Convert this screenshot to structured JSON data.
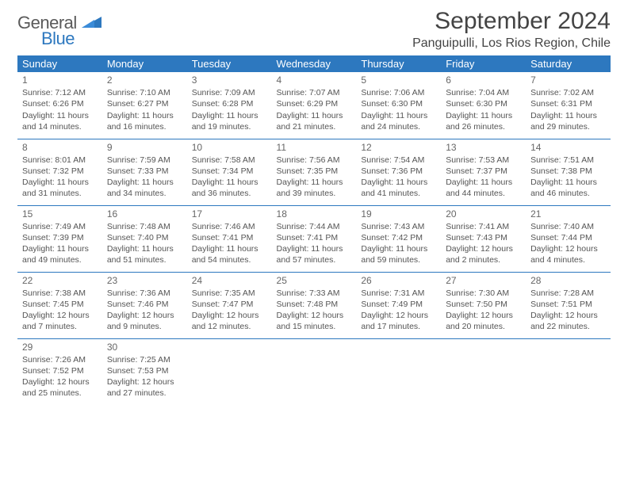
{
  "brand": {
    "part1": "General",
    "part2": "Blue"
  },
  "title": "September 2024",
  "location": "Panguipulli, Los Rios Region, Chile",
  "colors": {
    "header_bg": "#2d78bf",
    "header_text": "#ffffff",
    "cell_border": "#2d78bf",
    "text": "#555555",
    "title_text": "#444444",
    "background": "#ffffff"
  },
  "typography": {
    "title_fontsize": 30,
    "location_fontsize": 16,
    "dayheader_fontsize": 13,
    "cell_fontsize": 10.5
  },
  "day_headers": [
    "Sunday",
    "Monday",
    "Tuesday",
    "Wednesday",
    "Thursday",
    "Friday",
    "Saturday"
  ],
  "weeks": [
    [
      {
        "n": "1",
        "sr": "Sunrise: 7:12 AM",
        "ss": "Sunset: 6:26 PM",
        "d1": "Daylight: 11 hours",
        "d2": "and 14 minutes."
      },
      {
        "n": "2",
        "sr": "Sunrise: 7:10 AM",
        "ss": "Sunset: 6:27 PM",
        "d1": "Daylight: 11 hours",
        "d2": "and 16 minutes."
      },
      {
        "n": "3",
        "sr": "Sunrise: 7:09 AM",
        "ss": "Sunset: 6:28 PM",
        "d1": "Daylight: 11 hours",
        "d2": "and 19 minutes."
      },
      {
        "n": "4",
        "sr": "Sunrise: 7:07 AM",
        "ss": "Sunset: 6:29 PM",
        "d1": "Daylight: 11 hours",
        "d2": "and 21 minutes."
      },
      {
        "n": "5",
        "sr": "Sunrise: 7:06 AM",
        "ss": "Sunset: 6:30 PM",
        "d1": "Daylight: 11 hours",
        "d2": "and 24 minutes."
      },
      {
        "n": "6",
        "sr": "Sunrise: 7:04 AM",
        "ss": "Sunset: 6:30 PM",
        "d1": "Daylight: 11 hours",
        "d2": "and 26 minutes."
      },
      {
        "n": "7",
        "sr": "Sunrise: 7:02 AM",
        "ss": "Sunset: 6:31 PM",
        "d1": "Daylight: 11 hours",
        "d2": "and 29 minutes."
      }
    ],
    [
      {
        "n": "8",
        "sr": "Sunrise: 8:01 AM",
        "ss": "Sunset: 7:32 PM",
        "d1": "Daylight: 11 hours",
        "d2": "and 31 minutes."
      },
      {
        "n": "9",
        "sr": "Sunrise: 7:59 AM",
        "ss": "Sunset: 7:33 PM",
        "d1": "Daylight: 11 hours",
        "d2": "and 34 minutes."
      },
      {
        "n": "10",
        "sr": "Sunrise: 7:58 AM",
        "ss": "Sunset: 7:34 PM",
        "d1": "Daylight: 11 hours",
        "d2": "and 36 minutes."
      },
      {
        "n": "11",
        "sr": "Sunrise: 7:56 AM",
        "ss": "Sunset: 7:35 PM",
        "d1": "Daylight: 11 hours",
        "d2": "and 39 minutes."
      },
      {
        "n": "12",
        "sr": "Sunrise: 7:54 AM",
        "ss": "Sunset: 7:36 PM",
        "d1": "Daylight: 11 hours",
        "d2": "and 41 minutes."
      },
      {
        "n": "13",
        "sr": "Sunrise: 7:53 AM",
        "ss": "Sunset: 7:37 PM",
        "d1": "Daylight: 11 hours",
        "d2": "and 44 minutes."
      },
      {
        "n": "14",
        "sr": "Sunrise: 7:51 AM",
        "ss": "Sunset: 7:38 PM",
        "d1": "Daylight: 11 hours",
        "d2": "and 46 minutes."
      }
    ],
    [
      {
        "n": "15",
        "sr": "Sunrise: 7:49 AM",
        "ss": "Sunset: 7:39 PM",
        "d1": "Daylight: 11 hours",
        "d2": "and 49 minutes."
      },
      {
        "n": "16",
        "sr": "Sunrise: 7:48 AM",
        "ss": "Sunset: 7:40 PM",
        "d1": "Daylight: 11 hours",
        "d2": "and 51 minutes."
      },
      {
        "n": "17",
        "sr": "Sunrise: 7:46 AM",
        "ss": "Sunset: 7:41 PM",
        "d1": "Daylight: 11 hours",
        "d2": "and 54 minutes."
      },
      {
        "n": "18",
        "sr": "Sunrise: 7:44 AM",
        "ss": "Sunset: 7:41 PM",
        "d1": "Daylight: 11 hours",
        "d2": "and 57 minutes."
      },
      {
        "n": "19",
        "sr": "Sunrise: 7:43 AM",
        "ss": "Sunset: 7:42 PM",
        "d1": "Daylight: 11 hours",
        "d2": "and 59 minutes."
      },
      {
        "n": "20",
        "sr": "Sunrise: 7:41 AM",
        "ss": "Sunset: 7:43 PM",
        "d1": "Daylight: 12 hours",
        "d2": "and 2 minutes."
      },
      {
        "n": "21",
        "sr": "Sunrise: 7:40 AM",
        "ss": "Sunset: 7:44 PM",
        "d1": "Daylight: 12 hours",
        "d2": "and 4 minutes."
      }
    ],
    [
      {
        "n": "22",
        "sr": "Sunrise: 7:38 AM",
        "ss": "Sunset: 7:45 PM",
        "d1": "Daylight: 12 hours",
        "d2": "and 7 minutes."
      },
      {
        "n": "23",
        "sr": "Sunrise: 7:36 AM",
        "ss": "Sunset: 7:46 PM",
        "d1": "Daylight: 12 hours",
        "d2": "and 9 minutes."
      },
      {
        "n": "24",
        "sr": "Sunrise: 7:35 AM",
        "ss": "Sunset: 7:47 PM",
        "d1": "Daylight: 12 hours",
        "d2": "and 12 minutes."
      },
      {
        "n": "25",
        "sr": "Sunrise: 7:33 AM",
        "ss": "Sunset: 7:48 PM",
        "d1": "Daylight: 12 hours",
        "d2": "and 15 minutes."
      },
      {
        "n": "26",
        "sr": "Sunrise: 7:31 AM",
        "ss": "Sunset: 7:49 PM",
        "d1": "Daylight: 12 hours",
        "d2": "and 17 minutes."
      },
      {
        "n": "27",
        "sr": "Sunrise: 7:30 AM",
        "ss": "Sunset: 7:50 PM",
        "d1": "Daylight: 12 hours",
        "d2": "and 20 minutes."
      },
      {
        "n": "28",
        "sr": "Sunrise: 7:28 AM",
        "ss": "Sunset: 7:51 PM",
        "d1": "Daylight: 12 hours",
        "d2": "and 22 minutes."
      }
    ],
    [
      {
        "n": "29",
        "sr": "Sunrise: 7:26 AM",
        "ss": "Sunset: 7:52 PM",
        "d1": "Daylight: 12 hours",
        "d2": "and 25 minutes."
      },
      {
        "n": "30",
        "sr": "Sunrise: 7:25 AM",
        "ss": "Sunset: 7:53 PM",
        "d1": "Daylight: 12 hours",
        "d2": "and 27 minutes."
      },
      null,
      null,
      null,
      null,
      null
    ]
  ]
}
